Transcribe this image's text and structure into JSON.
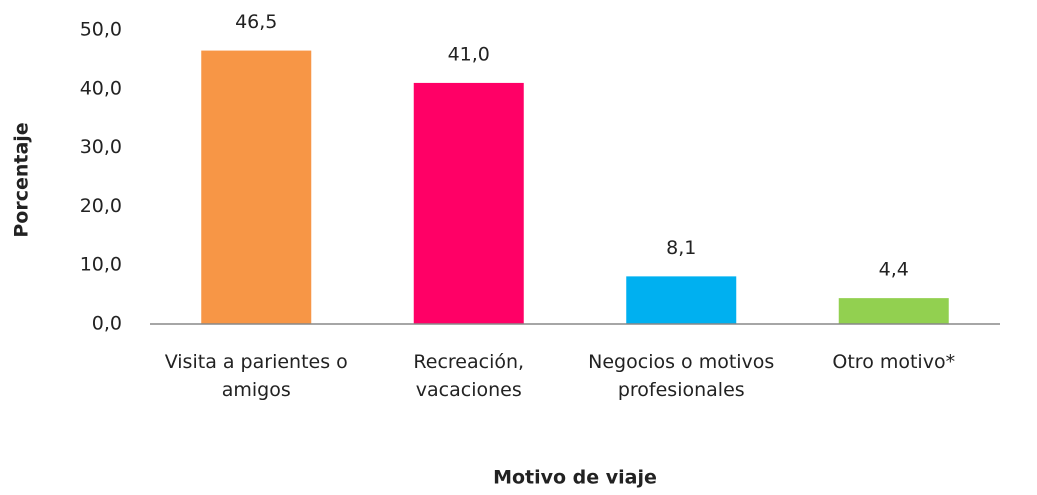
{
  "chart_data": {
    "type": "bar",
    "categories": [
      "Visita a parientes o amigos",
      "Recreación, vacaciones",
      "Negocios o motivos profesionales",
      "Otro motivo*"
    ],
    "values": [
      46.5,
      41.0,
      8.1,
      4.4
    ],
    "value_labels": [
      "46,5",
      "41,0",
      "8,1",
      "4,4"
    ],
    "colors": [
      "#f79646",
      "#ff0066",
      "#00b0f0",
      "#92d050"
    ],
    "ylim": [
      0,
      50
    ],
    "yticks": [
      {
        "value": 0,
        "label": "0,0"
      },
      {
        "value": 10,
        "label": "10,0"
      },
      {
        "value": 20,
        "label": "20,0"
      },
      {
        "value": 30,
        "label": "30,0"
      },
      {
        "value": 40,
        "label": "40,0"
      },
      {
        "value": 50,
        "label": "50,0"
      }
    ],
    "x_label": "Motivo de viaje",
    "y_label": "Porcentaje"
  }
}
